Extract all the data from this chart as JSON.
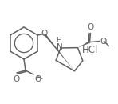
{
  "bg_color": "#ffffff",
  "line_color": "#606060",
  "line_width": 1.1,
  "text_color": "#606060",
  "hcl_text": "HCl",
  "o_text": "O",
  "n_text": "N",
  "h_text": "H"
}
